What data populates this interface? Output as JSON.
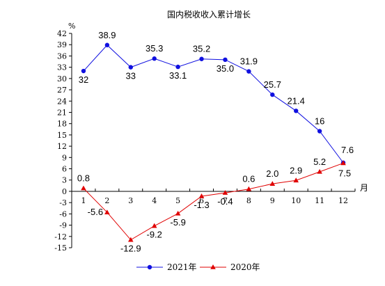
{
  "chart_data": {
    "type": "line",
    "title": "国内税收收入累计增长",
    "y_unit": "%",
    "x_unit": "月",
    "categories": [
      "1",
      "2",
      "3",
      "4",
      "5",
      "6",
      "7",
      "8",
      "9",
      "10",
      "11",
      "12"
    ],
    "ylim": [
      -15,
      42
    ],
    "yticks": [
      "42",
      "39",
      "36",
      "33",
      "30",
      "27",
      "24",
      "21",
      "18",
      "15",
      "12",
      "9",
      "6",
      "3",
      "0",
      "-3",
      "-6",
      "-9",
      "-12",
      "-15"
    ],
    "grid": false,
    "legend_position": "bottom",
    "series": [
      {
        "name": "2021年",
        "color": "#1010E0",
        "marker": "circle",
        "values": [
          32,
          38.9,
          33,
          35.3,
          33.1,
          35.2,
          35.0,
          31.9,
          25.7,
          21.4,
          16,
          7.6
        ],
        "labels": [
          "32",
          "38.9",
          "33",
          "35.3",
          "33.1",
          "35.2",
          "35.0",
          "31.9",
          "25.7",
          "21.4",
          "16",
          "7.6"
        ]
      },
      {
        "name": "2020年",
        "color": "#E00000",
        "marker": "triangle",
        "values": [
          0.8,
          -5.6,
          -12.9,
          -9.2,
          -5.9,
          -1.3,
          -0.4,
          0.6,
          2.0,
          2.9,
          5.2,
          7.5
        ],
        "labels": [
          "0.8",
          "-5.6",
          "-12.9",
          "-9.2",
          "-5.9",
          "-1.3",
          "-0.4",
          "0.6",
          "2.0",
          "2.9",
          "5.2",
          "7.5"
        ]
      }
    ]
  }
}
